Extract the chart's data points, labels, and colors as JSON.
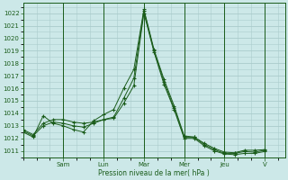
{
  "bg_color": "#cce8e8",
  "grid_color": "#aacccc",
  "line_color": "#1a5c1a",
  "xlabel": "Pression niveau de la mer( hPa )",
  "ylim": [
    1010.5,
    1022.8
  ],
  "yticks": [
    1011,
    1012,
    1013,
    1014,
    1015,
    1016,
    1017,
    1018,
    1019,
    1020,
    1021,
    1022
  ],
  "day_labels": [
    "Sam",
    "Lun",
    "Mar",
    "Mer",
    "Jeu",
    "V"
  ],
  "day_positions": [
    24,
    48,
    72,
    96,
    120,
    144
  ],
  "xlim": [
    0,
    156
  ],
  "series1_x": [
    0,
    6,
    12,
    18,
    24,
    30,
    36,
    42,
    48,
    54,
    60,
    66,
    72,
    78,
    84,
    90,
    96,
    102,
    108,
    114,
    120,
    126,
    132,
    138,
    144
  ],
  "series1_y": [
    1012.5,
    1012.1,
    1013.8,
    1013.2,
    1013.0,
    1012.7,
    1012.5,
    1013.4,
    1013.9,
    1014.3,
    1016.0,
    1017.5,
    1022.3,
    1019.1,
    1016.7,
    1014.6,
    1012.2,
    1012.1,
    1011.6,
    1011.2,
    1010.9,
    1010.85,
    1011.05,
    1011.05,
    1011.1
  ],
  "series2_x": [
    0,
    6,
    12,
    18,
    24,
    30,
    36,
    42,
    48,
    54,
    60,
    66,
    72,
    78,
    84,
    90,
    96,
    102,
    108,
    114,
    120,
    126,
    132,
    138,
    144
  ],
  "series2_y": [
    1012.6,
    1012.2,
    1013.0,
    1013.3,
    1013.2,
    1013.0,
    1012.9,
    1013.2,
    1013.5,
    1013.7,
    1015.2,
    1016.8,
    1022.2,
    1019.0,
    1016.5,
    1014.4,
    1012.1,
    1012.1,
    1011.5,
    1011.1,
    1010.8,
    1010.8,
    1010.95,
    1010.9,
    1011.05
  ],
  "series3_x": [
    0,
    6,
    12,
    18,
    24,
    30,
    36,
    42,
    48,
    54,
    60,
    66,
    72,
    78,
    84,
    90,
    96,
    102,
    108,
    114,
    120,
    126,
    132,
    138,
    144
  ],
  "series3_y": [
    1012.7,
    1012.3,
    1013.2,
    1013.5,
    1013.5,
    1013.3,
    1013.2,
    1013.3,
    1013.5,
    1013.6,
    1014.8,
    1016.2,
    1022.0,
    1018.9,
    1016.3,
    1014.3,
    1012.0,
    1012.0,
    1011.4,
    1011.0,
    1010.75,
    1010.7,
    1010.8,
    1010.8,
    1010.95
  ]
}
